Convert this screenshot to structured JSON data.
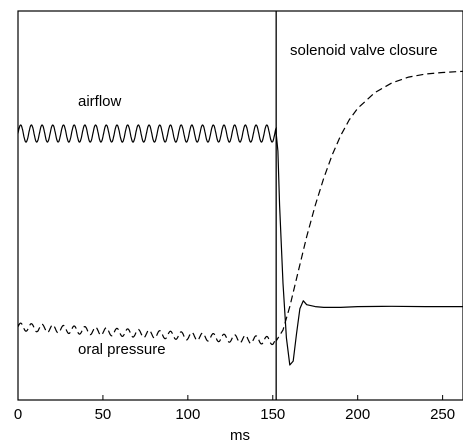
{
  "chart_data": {
    "type": "line",
    "title": "",
    "xlabel": "ms",
    "ylabel": "",
    "xlim": [
      0,
      262
    ],
    "ylim": [
      0,
      1
    ],
    "grid": false,
    "x_ticks": [
      0,
      50,
      100,
      150,
      200,
      250
    ],
    "x_tick_labels": [
      "0",
      "50",
      "100",
      "150",
      "200",
      "250"
    ],
    "annotations": {
      "event_line_x": 152,
      "event_label": "solenoid valve closure",
      "airflow_label": "airflow",
      "pressure_label": "oral pressure"
    },
    "series": [
      {
        "name": "airflow",
        "style": "solid",
        "oscillation": {
          "x_start": 0,
          "x_end": 152,
          "center": 0.685,
          "amplitude": 0.022,
          "period_ms": 6.3
        },
        "x": [
          152,
          153,
          154,
          156,
          158,
          160,
          162,
          164,
          166,
          168,
          170,
          175,
          180,
          190,
          200,
          220,
          240,
          262
        ],
        "y": [
          0.685,
          0.64,
          0.5,
          0.3,
          0.16,
          0.09,
          0.1,
          0.17,
          0.235,
          0.255,
          0.245,
          0.24,
          0.238,
          0.238,
          0.24,
          0.241,
          0.24,
          0.24
        ]
      },
      {
        "name": "oral pressure",
        "style": "dashed",
        "oscillation": {
          "x_start": 0,
          "x_end": 152,
          "center_start": 0.188,
          "center_end": 0.152,
          "amplitude": 0.01,
          "period_ms": 6.3
        },
        "x": [
          152,
          156,
          160,
          165,
          170,
          175,
          180,
          185,
          190,
          195,
          200,
          210,
          220,
          230,
          240,
          250,
          262
        ],
        "y": [
          0.152,
          0.18,
          0.24,
          0.33,
          0.42,
          0.5,
          0.57,
          0.63,
          0.68,
          0.72,
          0.75,
          0.79,
          0.815,
          0.83,
          0.838,
          0.842,
          0.845
        ]
      }
    ]
  }
}
